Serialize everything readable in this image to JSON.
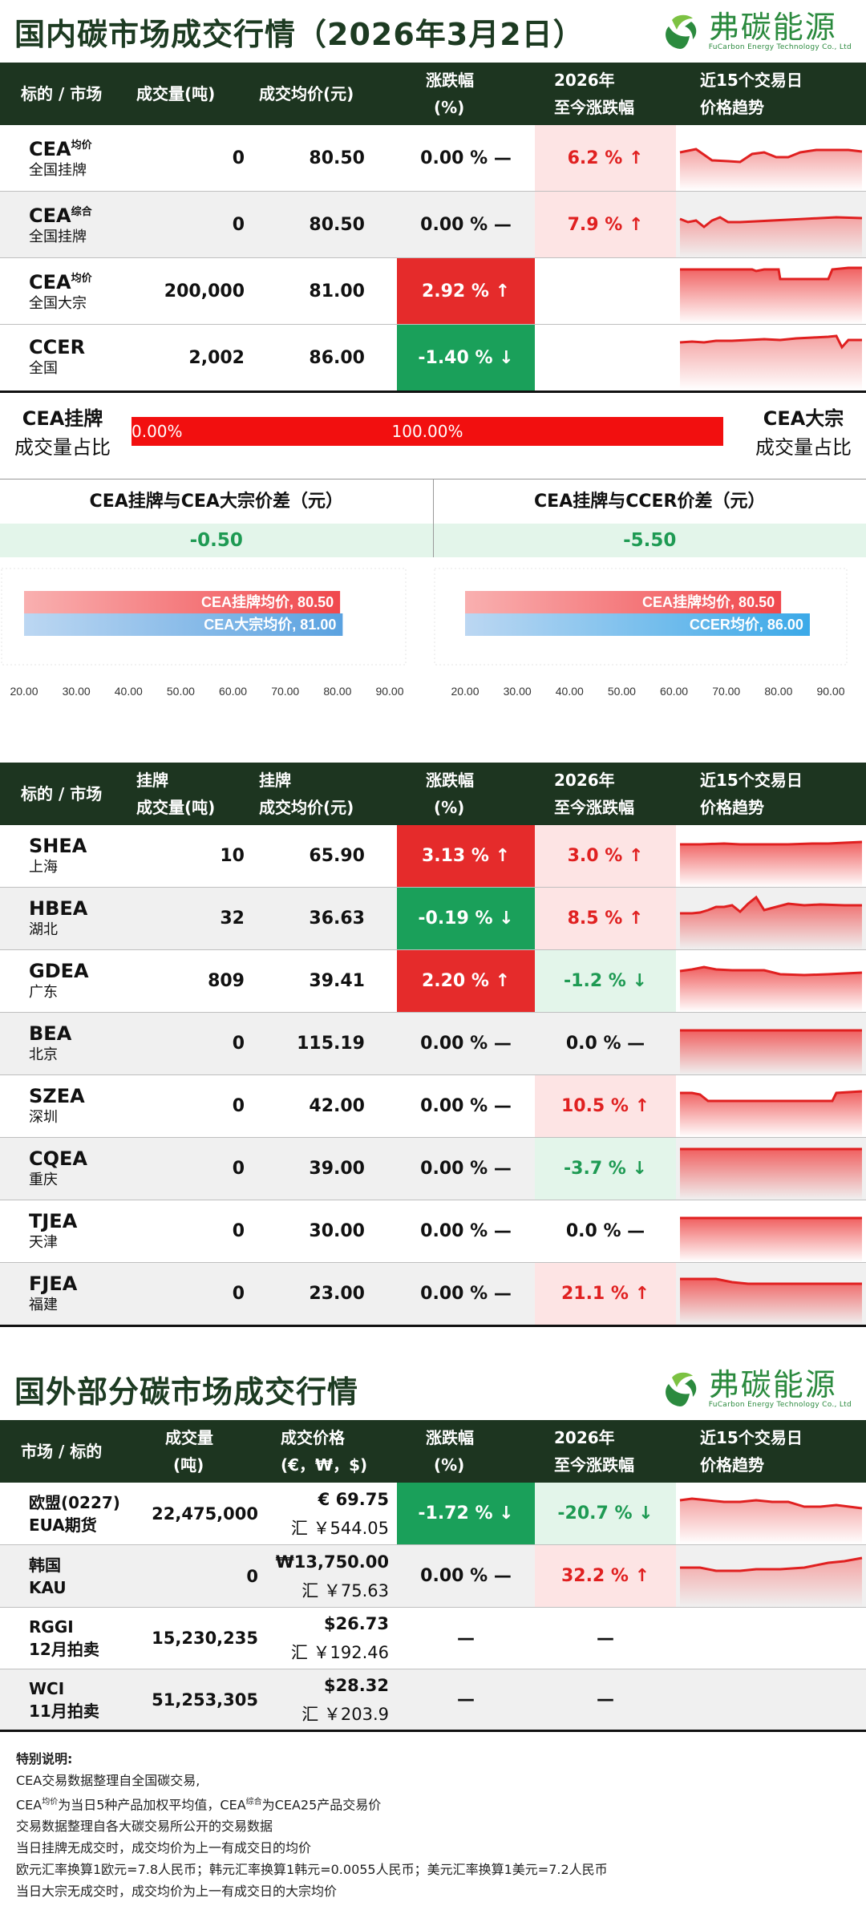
{
  "header": {
    "title": "国内碳市场成交行情（2026年3月2日）",
    "logo_cn": "弗碳能源",
    "logo_en": "FuCarbon Energy Technology Co., Ltd"
  },
  "table1": {
    "headers": [
      "标的 / 市场",
      "成交量(吨)",
      "成交均价(元)",
      "涨跌幅\n(%)",
      "2026年\n至今涨跌幅",
      "近15个交易日\n价格趋势"
    ],
    "h": {
      "c0": "标的 / 市场",
      "c1": "成交量(吨)",
      "c2": "成交均价(元)",
      "c3a": "涨跌幅",
      "c3b": "(%)",
      "c4a": "2026年",
      "c4b": "至今涨跌幅",
      "c5a": "近15个交易日",
      "c5b": "价格趋势"
    },
    "rows": [
      {
        "name": "CEA",
        "sup": "均价",
        "sub": "全国挂牌",
        "vol": "0",
        "price": "80.50",
        "chg": "0.00 % —",
        "ytd": "6.2 % ↑"
      },
      {
        "name": "CEA",
        "sup": "综合",
        "sub": "全国挂牌",
        "vol": "0",
        "price": "80.50",
        "chg": "0.00 % —",
        "ytd": "7.9 % ↑"
      },
      {
        "name": "CEA",
        "sup": "均价",
        "sub": "全国大宗",
        "vol": "200,000",
        "price": "81.00",
        "chg": "2.92 % ↑",
        "ytd": ""
      },
      {
        "name": "CCER",
        "sup": "",
        "sub": "全国",
        "vol": "2,002",
        "price": "86.00",
        "chg": "-1.40 % ↓",
        "ytd": ""
      }
    ]
  },
  "ratio": {
    "left_l1": "CEA挂牌",
    "left_l2": "成交量占比",
    "right_l1": "CEA大宗",
    "right_l2": "成交量占比",
    "left_pct": "0.00%",
    "right_pct": "100.00%",
    "cea_listed_share": 0.0
  },
  "diff": {
    "left_title": "CEA挂牌与CEA大宗价差（元）",
    "left_value": "-0.50",
    "right_title": "CEA挂牌与CCER价差（元）",
    "right_value": "-5.50"
  },
  "chart_data": [
    {
      "type": "bar",
      "orientation": "horizontal",
      "categories": [
        "CEA挂牌均价",
        "CEA大宗均价"
      ],
      "values": [
        80.5,
        81.0
      ],
      "labels": [
        "CEA挂牌均价, 80.50",
        "CEA大宗均价, 81.00"
      ],
      "colors": [
        "#f0484d",
        "#5aa2e0"
      ],
      "xlim": [
        20,
        90
      ],
      "xticks": [
        "20.00",
        "30.00",
        "40.00",
        "50.00",
        "60.00",
        "70.00",
        "80.00",
        "90.00"
      ]
    },
    {
      "type": "bar",
      "orientation": "horizontal",
      "categories": [
        "CEA挂牌均价",
        "CCER均价"
      ],
      "values": [
        80.5,
        86.0
      ],
      "labels": [
        "CEA挂牌均价, 80.50",
        "CCER均价, 86.00"
      ],
      "colors": [
        "#f0484d",
        "#3ba9e8"
      ],
      "xlim": [
        20,
        90
      ],
      "xticks": [
        "20.00",
        "30.00",
        "40.00",
        "50.00",
        "60.00",
        "70.00",
        "80.00",
        "90.00"
      ]
    }
  ],
  "table2": {
    "h": {
      "c0": "标的 / 市场",
      "c1a": "挂牌",
      "c1b": "成交量(吨)",
      "c2a": "挂牌",
      "c2b": "成交均价(元)",
      "c3a": "涨跌幅",
      "c3b": "(%)",
      "c4a": "2026年",
      "c4b": "至今涨跌幅",
      "c5a": "近15个交易日",
      "c5b": "价格趋势"
    },
    "rows": [
      {
        "name": "SHEA",
        "sub": "上海",
        "vol": "10",
        "price": "65.90",
        "chg": "3.13 % ↑",
        "ytd": "3.0 % ↑"
      },
      {
        "name": "HBEA",
        "sub": "湖北",
        "vol": "32",
        "price": "36.63",
        "chg": "-0.19 % ↓",
        "ytd": "8.5 % ↑"
      },
      {
        "name": "GDEA",
        "sub": "广东",
        "vol": "809",
        "price": "39.41",
        "chg": "2.20 % ↑",
        "ytd": "-1.2 % ↓"
      },
      {
        "name": "BEA",
        "sub": "北京",
        "vol": "0",
        "price": "115.19",
        "chg": "0.00 % —",
        "ytd": "0.0 % —"
      },
      {
        "name": "SZEA",
        "sub": "深圳",
        "vol": "0",
        "price": "42.00",
        "chg": "0.00 % —",
        "ytd": "10.5 % ↑"
      },
      {
        "name": "CQEA",
        "sub": "重庆",
        "vol": "0",
        "price": "39.00",
        "chg": "0.00 % —",
        "ytd": "-3.7 % ↓"
      },
      {
        "name": "TJEA",
        "sub": "天津",
        "vol": "0",
        "price": "30.00",
        "chg": "0.00 % —",
        "ytd": "0.0 % —"
      },
      {
        "name": "FJEA",
        "sub": "福建",
        "vol": "0",
        "price": "23.00",
        "chg": "0.00 % —",
        "ytd": "21.1 % ↑"
      }
    ]
  },
  "section2": {
    "title": "国外部分碳市场成交行情",
    "logo_cn": "弗碳能源",
    "logo_en": "FuCarbon Energy Technology Co., Ltd"
  },
  "table3": {
    "h": {
      "c0": "市场 / 标的",
      "c1a": "成交量",
      "c1b": "(吨)",
      "c2a": "成交价格",
      "c2b": "(€，₩，$)",
      "c3a": "涨跌幅",
      "c3b": "(%)",
      "c4a": "2026年",
      "c4b": "至今涨跌幅",
      "c5a": "近15个交易日",
      "c5b": "价格趋势"
    },
    "rows": [
      {
        "name": "欧盟(0227)",
        "sub": "EUA期货",
        "vol": "22,475,000",
        "price": "€ 69.75",
        "cny": "汇 ￥544.05",
        "chg": "-1.72 % ↓",
        "ytd": "-20.7 % ↓"
      },
      {
        "name": "韩国",
        "sub": "KAU",
        "vol": "0",
        "price": "₩13,750.00",
        "cny": "汇 ￥75.63",
        "chg": "0.00 % —",
        "ytd": "32.2 % ↑"
      },
      {
        "name": "RGGI",
        "sub": "12月拍卖",
        "vol": "15,230,235",
        "price": "$26.73",
        "cny": "汇 ￥192.46",
        "chg": "—",
        "ytd": "—"
      },
      {
        "name": "WCI",
        "sub": "11月拍卖",
        "vol": "51,253,305",
        "price": "$28.32",
        "cny": "汇 ￥203.9",
        "chg": "—",
        "ytd": "—"
      }
    ]
  },
  "notes": {
    "title": "特别说明:",
    "l1": "CEA交易数据整理自全国碳交易,",
    "l2a": "CEA",
    "l2sup1": "均价",
    "l2b": "为当日5种产品加权平均值，CEA",
    "l2sup2": "综合",
    "l2c": "为CEA25产品交易价",
    "l3": "交易数据整理自各大碳交易所公开的交易数据",
    "l4": "当日挂牌无成交时，成交均价为上一有成交日的均价",
    "l5": "欧元汇率换算1欧元=7.8人民币；韩元汇率换算1韩元=0.0055人民币；美元汇率换算1美元=7.2人民币",
    "l6": "当日大宗无成交时，成交均价为上一有成交日的大宗均价"
  },
  "colors": {
    "header_bg": "#1d3520",
    "up": "#e52b2b",
    "down": "#1aa05a",
    "pink": "#fde4e4",
    "mint": "#e3f5ea",
    "brand": "#2b8a3e"
  }
}
